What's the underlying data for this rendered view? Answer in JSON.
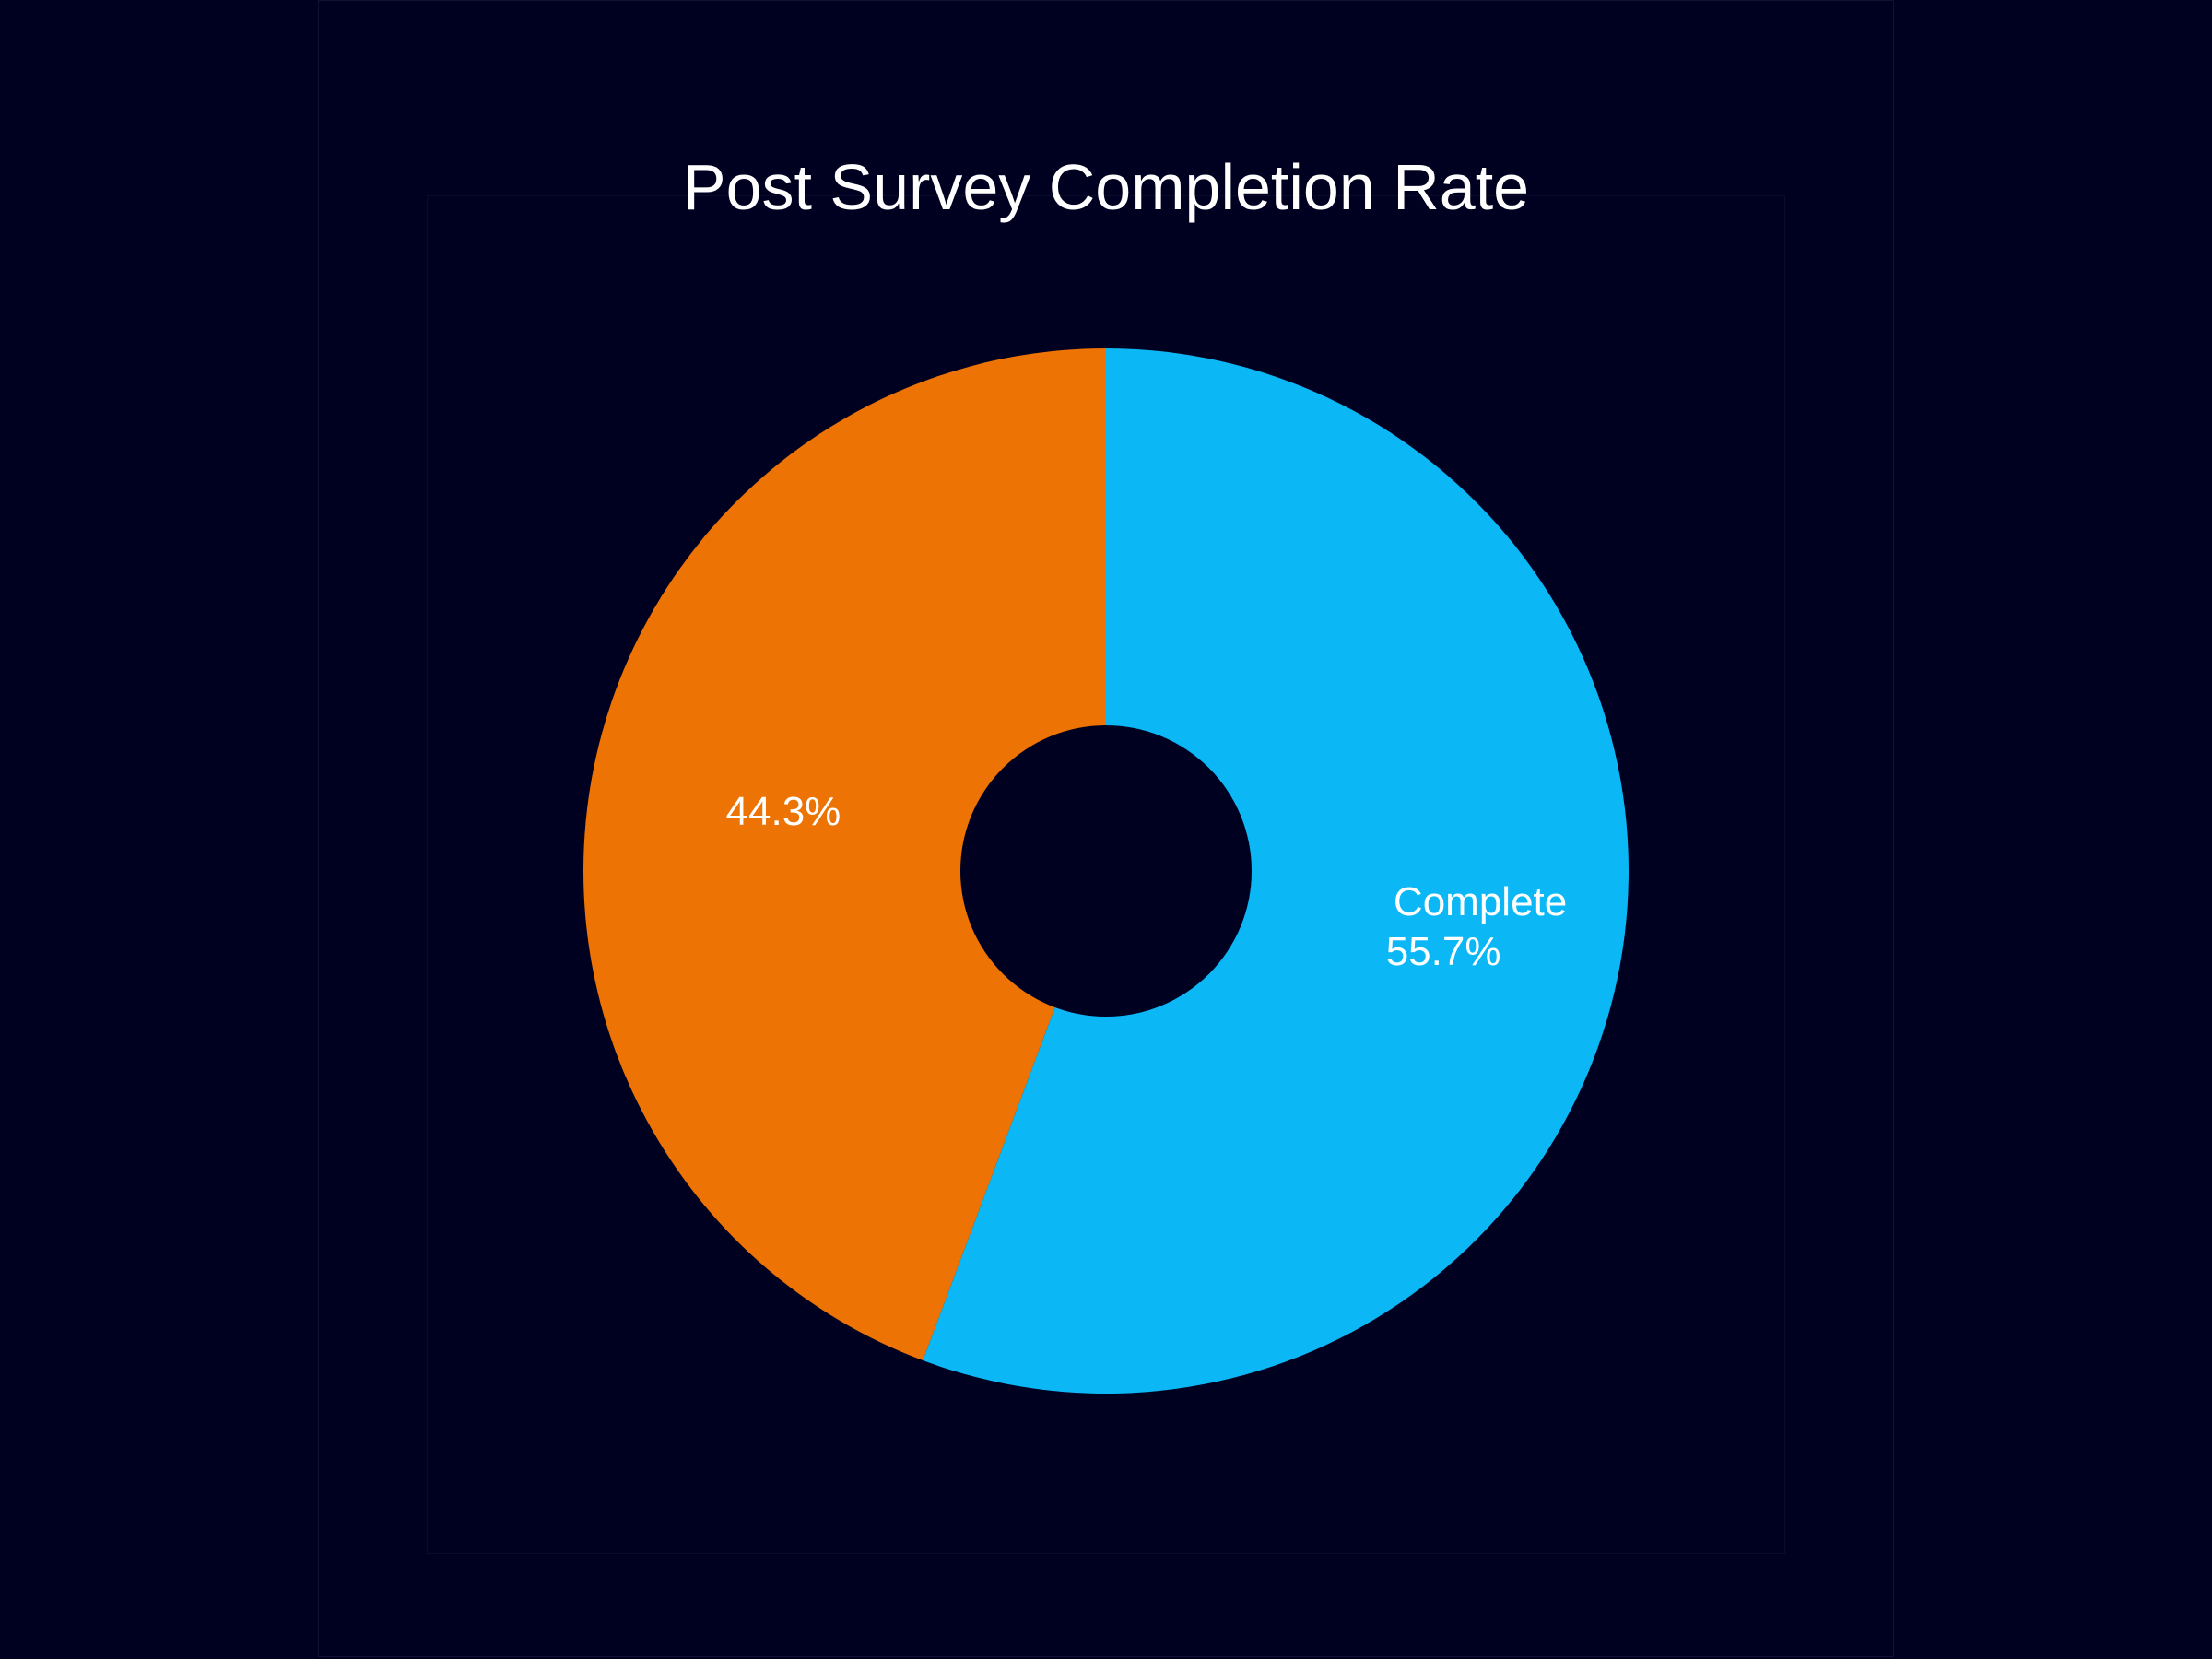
{
  "chart_data": {
    "type": "pie",
    "donut": true,
    "title": "Post Survey Completion Rate",
    "slices": [
      {
        "label": "Complete",
        "value": 55.7,
        "display": "55.7%",
        "color": "#0bb8f5"
      },
      {
        "label": "",
        "value": 44.3,
        "display": "44.3%",
        "color": "#ec7304"
      }
    ],
    "background": "#000020"
  }
}
